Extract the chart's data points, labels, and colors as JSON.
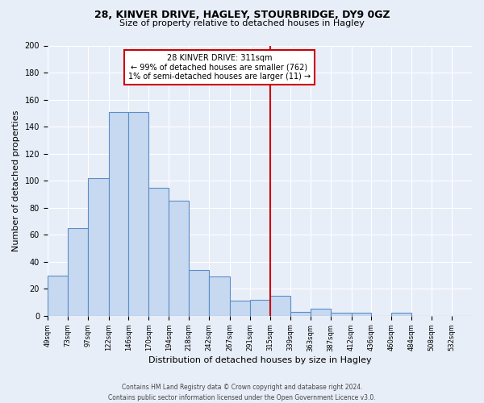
{
  "title_line1": "28, KINVER DRIVE, HAGLEY, STOURBRIDGE, DY9 0GZ",
  "title_line2": "Size of property relative to detached houses in Hagley",
  "xlabel": "Distribution of detached houses by size in Hagley",
  "ylabel": "Number of detached properties",
  "bin_labels": [
    "49sqm",
    "73sqm",
    "97sqm",
    "122sqm",
    "146sqm",
    "170sqm",
    "194sqm",
    "218sqm",
    "242sqm",
    "267sqm",
    "291sqm",
    "315sqm",
    "339sqm",
    "363sqm",
    "387sqm",
    "412sqm",
    "436sqm",
    "460sqm",
    "484sqm",
    "508sqm",
    "532sqm"
  ],
  "bar_values": [
    30,
    65,
    102,
    151,
    151,
    95,
    85,
    34,
    29,
    11,
    12,
    15,
    3,
    5,
    2,
    2,
    0,
    2,
    0,
    0,
    0
  ],
  "bar_color": "#c6d9f0",
  "bar_edge_color": "#5b8dc8",
  "vline_x": 315,
  "vline_color": "#cc0000",
  "annotation_line1": "28 KINVER DRIVE: 311sqm",
  "annotation_line2": "← 99% of detached houses are smaller (762)",
  "annotation_line3": "1% of semi-detached houses are larger (11) →",
  "ylim": [
    0,
    200
  ],
  "yticks": [
    0,
    20,
    40,
    60,
    80,
    100,
    120,
    140,
    160,
    180,
    200
  ],
  "footer": "Contains HM Land Registry data © Crown copyright and database right 2024.\nContains public sector information licensed under the Open Government Licence v3.0.",
  "bg_color": "#e8eef8",
  "grid_color": "#ffffff",
  "annotation_box_facecolor": "#ffffff",
  "annotation_box_edgecolor": "#cc0000"
}
